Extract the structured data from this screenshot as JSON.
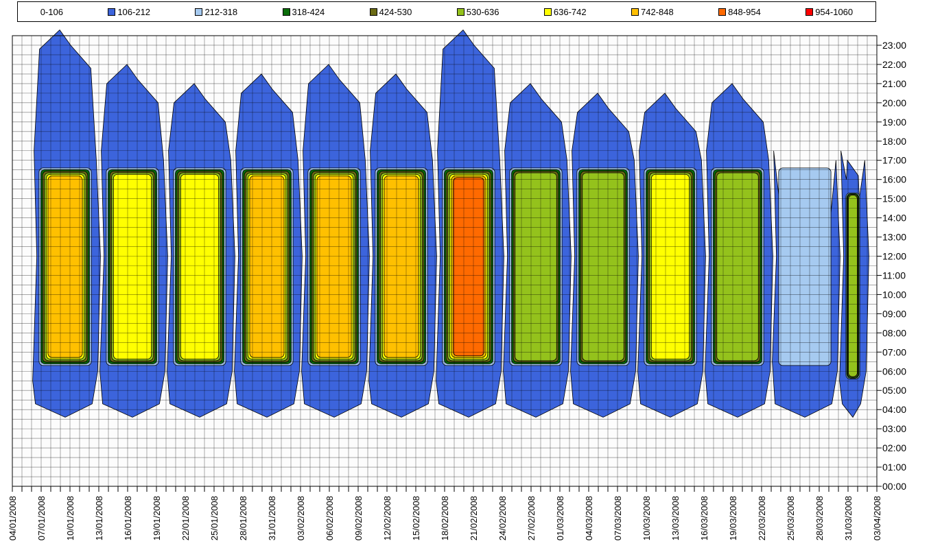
{
  "chart_data": {
    "type": "heatmap",
    "subtype": "contour",
    "title": "",
    "xlabel": "",
    "ylabel": "",
    "legend_position": "top",
    "grid": true,
    "legend": [
      {
        "label": "0-106",
        "color": "#FCFCFC"
      },
      {
        "label": "106-212",
        "color": "#3C64DC"
      },
      {
        "label": "212-318",
        "color": "#A6CAF0"
      },
      {
        "label": "318-424",
        "color": "#0A6E0A"
      },
      {
        "label": "424-530",
        "color": "#6B6B14"
      },
      {
        "label": "530-636",
        "color": "#94C21C"
      },
      {
        "label": "636-742",
        "color": "#FFFF00"
      },
      {
        "label": "742-848",
        "color": "#FFC000"
      },
      {
        "label": "848-954",
        "color": "#FF6A00"
      },
      {
        "label": "954-1060",
        "color": "#FF0000"
      }
    ],
    "x_ticks": [
      "04/01/2008",
      "07/01/2008",
      "10/01/2008",
      "13/01/2008",
      "16/01/2008",
      "19/01/2008",
      "22/01/2008",
      "25/01/2008",
      "28/01/2008",
      "31/01/2008",
      "03/02/2008",
      "06/02/2008",
      "09/02/2008",
      "12/02/2008",
      "15/02/2008",
      "18/02/2008",
      "21/02/2008",
      "24/02/2008",
      "27/02/2008",
      "01/03/2008",
      "04/03/2008",
      "07/03/2008",
      "10/03/2008",
      "13/03/2008",
      "16/03/2008",
      "19/03/2008",
      "22/03/2008",
      "25/03/2008",
      "28/03/2008",
      "31/03/2008",
      "03/04/2008"
    ],
    "y_ticks": [
      "00:00",
      "01:00",
      "02:00",
      "03:00",
      "04:00",
      "05:00",
      "06:00",
      "07:00",
      "08:00",
      "09:00",
      "10:00",
      "11:00",
      "12:00",
      "13:00",
      "14:00",
      "15:00",
      "16:00",
      "17:00",
      "18:00",
      "19:00",
      "20:00",
      "21:00",
      "22:00",
      "23:00"
    ],
    "xlim": [
      "04/01/2008",
      "04/04/2008"
    ],
    "ylim": [
      "00:00",
      "23:59"
    ],
    "weeks": [
      {
        "start": "07/01/2008",
        "peak": "742-848",
        "evening": "23:59",
        "start_hour": 5.5
      },
      {
        "start": "14/01/2008",
        "peak": "636-742",
        "evening": "22:00",
        "start_hour": 6.0
      },
      {
        "start": "21/01/2008",
        "peak": "636-742",
        "evening": "21:00",
        "start_hour": 6.0
      },
      {
        "start": "28/01/2008",
        "peak": "742-848",
        "evening": "21:30",
        "start_hour": 6.0
      },
      {
        "start": "04/02/2008",
        "peak": "742-848",
        "evening": "22:00",
        "start_hour": 6.0
      },
      {
        "start": "11/02/2008",
        "peak": "742-848",
        "evening": "21:30",
        "start_hour": 5.5
      },
      {
        "start": "18/02/2008",
        "peak": "848-954",
        "evening": "23:59",
        "start_hour": 5.5
      },
      {
        "start": "25/02/2008",
        "peak": "530-636",
        "evening": "21:00",
        "start_hour": 6.0
      },
      {
        "start": "03/03/2008",
        "peak": "530-636",
        "evening": "20:30",
        "start_hour": 6.0
      },
      {
        "start": "10/03/2008",
        "peak": "636-742",
        "evening": "20:30",
        "start_hour": 6.0
      },
      {
        "start": "17/03/2008",
        "peak": "530-636",
        "evening": "21:00",
        "start_hour": 6.0
      },
      {
        "start": "24/03/2008",
        "peak": "212-318",
        "evening": "16:00",
        "start_hour": 6.5
      },
      {
        "start": "31/03/2008",
        "peak": "530-636",
        "evening": "17:00",
        "start_hour": 5.5
      }
    ]
  }
}
